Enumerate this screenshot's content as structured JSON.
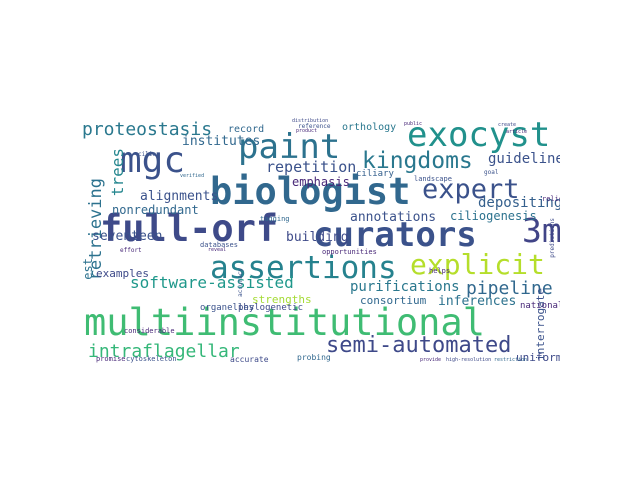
{
  "words": [
    {
      "text": "multiinstitutional",
      "color": "#3fbc73"
    },
    {
      "text": "full-orf",
      "color": "#3e4a89"
    },
    {
      "text": "curators",
      "color": "#3b528b"
    },
    {
      "text": "biologist",
      "color": "#31688e"
    },
    {
      "text": "paint",
      "color": "#2c728e"
    },
    {
      "text": "exocyst",
      "color": "#21918c"
    },
    {
      "text": "mgc",
      "color": "#3b528b"
    },
    {
      "text": "assertions",
      "color": "#26828e"
    },
    {
      "text": "explicit",
      "color": "#b5de2b"
    },
    {
      "text": "3m",
      "color": "#414487"
    },
    {
      "text": "expert",
      "color": "#3b528b"
    },
    {
      "text": "kingdoms",
      "color": "#2a788e"
    },
    {
      "text": "semi-automated",
      "color": "#3e4989"
    },
    {
      "text": "intraflagellar",
      "color": "#35b779"
    },
    {
      "text": "proteostasis",
      "color": "#2a788e"
    },
    {
      "text": "software-assisted",
      "color": "#1f988b"
    },
    {
      "text": "pipeline",
      "color": "#31688e"
    },
    {
      "text": "retrieving",
      "color": "#2c728e"
    },
    {
      "text": "repetition",
      "color": "#3b528b"
    },
    {
      "text": "trees",
      "color": "#24868e"
    },
    {
      "text": "institutes",
      "color": "#31688e"
    },
    {
      "text": "guidelines",
      "color": "#3b528b"
    },
    {
      "text": "depositing",
      "color": "#35608d"
    },
    {
      "text": "emphasis",
      "color": "#482878"
    },
    {
      "text": "alignments",
      "color": "#3b528b"
    },
    {
      "text": "nonredundant",
      "color": "#31688e"
    },
    {
      "text": "annotations",
      "color": "#3b528b"
    },
    {
      "text": "ciliogenesis",
      "color": "#2c728e"
    },
    {
      "text": "seventeen",
      "color": "#3b528b"
    },
    {
      "text": "building",
      "color": "#3e4a89"
    },
    {
      "text": "purifications",
      "color": "#2a788e"
    },
    {
      "text": "inferences",
      "color": "#2c728e"
    },
    {
      "text": "consortium",
      "color": "#31688e"
    },
    {
      "text": "strengths",
      "color": "#a5db36"
    },
    {
      "text": "examples",
      "color": "#3e4a89"
    },
    {
      "text": "interrogate",
      "color": "#3b528b"
    },
    {
      "text": "uniform",
      "color": "#3e4a89"
    },
    {
      "text": "orthology",
      "color": "#2a788e"
    },
    {
      "text": "record",
      "color": "#31688e"
    },
    {
      "text": "ciliary",
      "color": "#35608d"
    },
    {
      "text": "phylogenetic",
      "color": "#3e4a89"
    },
    {
      "text": "organelles",
      "color": "#3b528b"
    },
    {
      "text": "est",
      "color": "#2c728e"
    },
    {
      "text": "national",
      "color": "#482878"
    },
    {
      "text": "landscape",
      "color": "#3b528b"
    },
    {
      "text": "helps",
      "color": "#482878"
    },
    {
      "text": "probing",
      "color": "#31688e"
    },
    {
      "text": "accurate",
      "color": "#3e4a89"
    },
    {
      "text": "promise",
      "color": "#482878"
    },
    {
      "text": "cytoskeleton",
      "color": "#3b528b"
    },
    {
      "text": "considerable",
      "color": "#482878"
    },
    {
      "text": "databases",
      "color": "#3b528b"
    },
    {
      "text": "tagging",
      "color": "#31688e"
    },
    {
      "text": "opportunities",
      "color": "#482878"
    },
    {
      "text": "reference",
      "color": "#3b528b"
    },
    {
      "text": "relies",
      "color": "#482878"
    },
    {
      "text": "provide",
      "color": "#482878"
    },
    {
      "text": "high-resolution",
      "color": "#3e4a89"
    },
    {
      "text": "restriction",
      "color": "#31688e"
    },
    {
      "text": "goal",
      "color": "#3b528b"
    },
    {
      "text": "article",
      "color": "#482878"
    },
    {
      "text": "create",
      "color": "#3e4a89"
    },
    {
      "text": "effort",
      "color": "#482878"
    },
    {
      "text": "cilia",
      "color": "#3b528b"
    },
    {
      "text": "verified",
      "color": "#31688e"
    },
    {
      "text": "predictions",
      "color": "#3e4a89"
    },
    {
      "text": "reveal",
      "color": "#482878"
    },
    {
      "text": "accuracy",
      "color": "#3b528b"
    },
    {
      "text": "public",
      "color": "#482878"
    },
    {
      "text": "distribution",
      "color": "#3e4a89"
    },
    {
      "text": "product",
      "color": "#482878"
    }
  ]
}
